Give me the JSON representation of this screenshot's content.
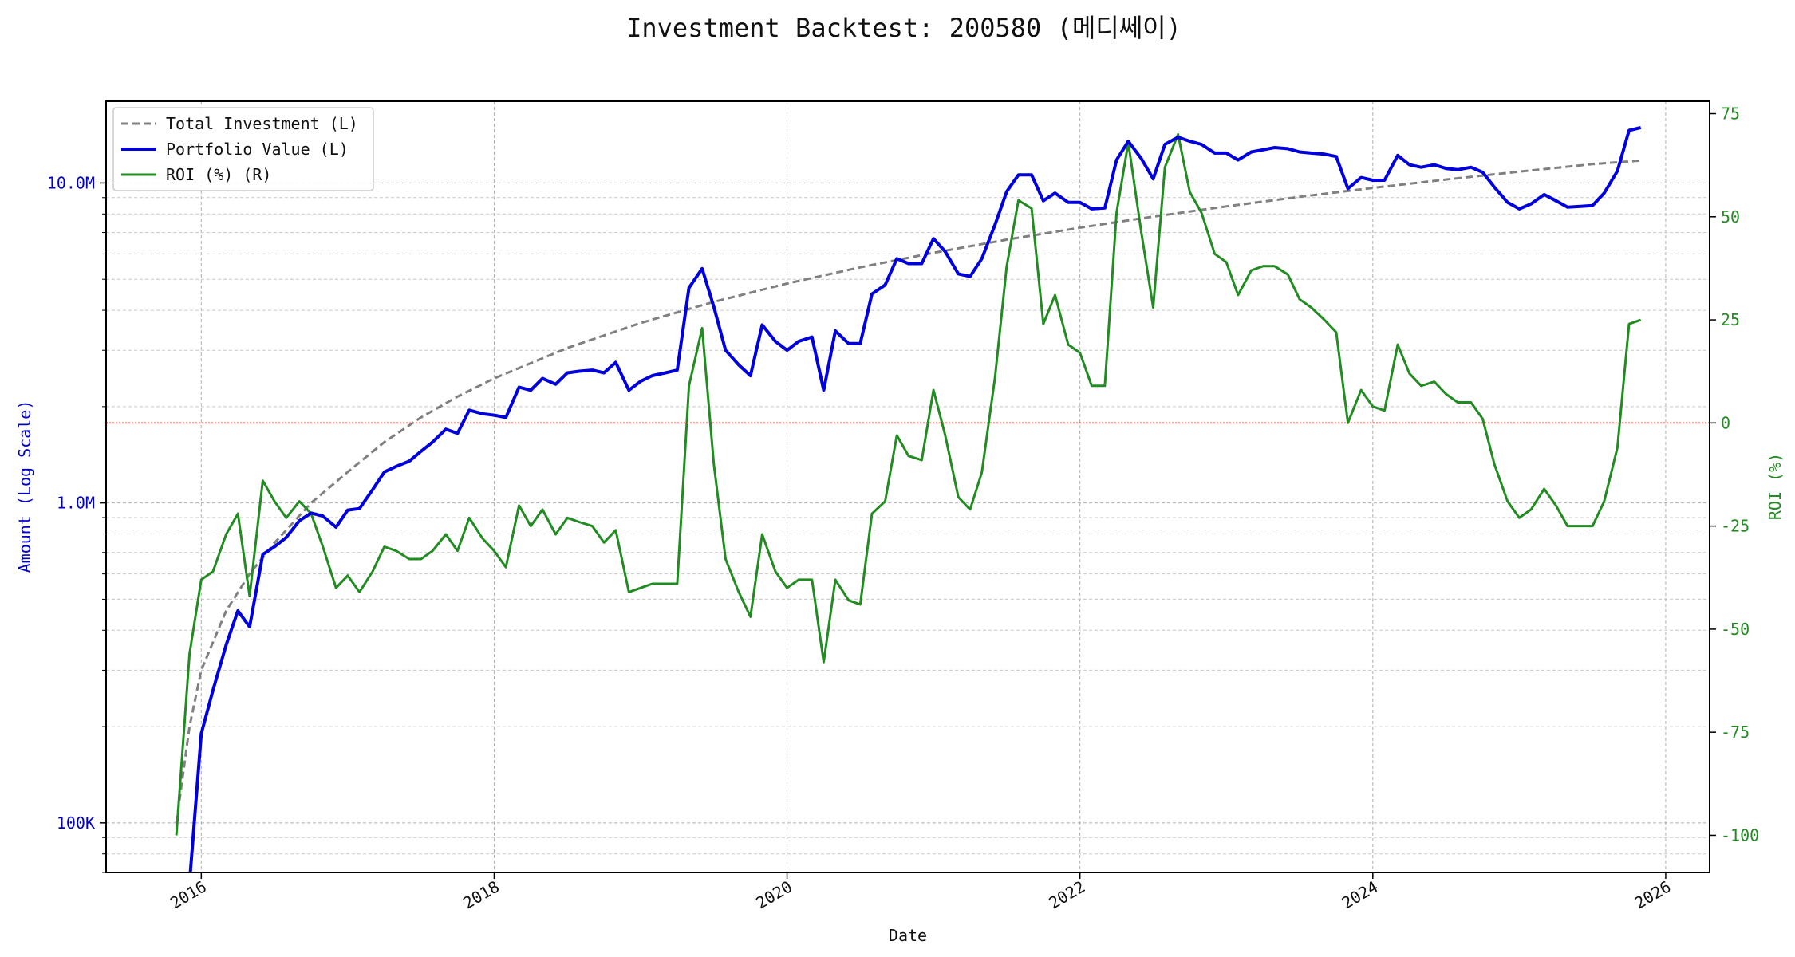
{
  "chart_data": {
    "type": "line",
    "title": "Investment Backtest: 200580 (메디쎄이)",
    "xlabel": "Date",
    "ylabel_left": "Amount (Log Scale)",
    "ylabel_right": "ROI (%)",
    "x_range": [
      2015.35,
      2026.3
    ],
    "y_left_scale": "log",
    "y_left_range": [
      70000,
      18000000
    ],
    "y_right_range": [
      -109,
      78
    ],
    "x_ticks": [
      {
        "v": 2016,
        "label": "2016"
      },
      {
        "v": 2018,
        "label": "2018"
      },
      {
        "v": 2020,
        "label": "2020"
      },
      {
        "v": 2022,
        "label": "2022"
      },
      {
        "v": 2024,
        "label": "2024"
      },
      {
        "v": 2026,
        "label": "2026"
      }
    ],
    "y_left_ticks": [
      {
        "v": 100000,
        "label": "100K"
      },
      {
        "v": 1000000,
        "label": "1.0M"
      },
      {
        "v": 10000000,
        "label": "10.0M"
      }
    ],
    "y_right_ticks": [
      -100,
      -75,
      -50,
      -25,
      0,
      25,
      50,
      75
    ],
    "grid": true,
    "legend_position": "top-left",
    "reference_line": {
      "axis": "right",
      "value": 0,
      "color": "#ff0000"
    },
    "series": [
      {
        "name": "Total Investment (L)",
        "axis": "left",
        "color": "#808080",
        "style": "dashed",
        "x": [
          2015.83,
          2015.92,
          2016.0,
          2016.17,
          2016.33,
          2016.5,
          2016.75,
          2017.0,
          2017.25,
          2017.5,
          2017.75,
          2018.0,
          2018.5,
          2019.0,
          2019.5,
          2020.0,
          2020.5,
          2021.0,
          2021.5,
          2022.0,
          2022.5,
          2023.0,
          2023.5,
          2024.0,
          2024.5,
          2025.0,
          2025.5,
          2025.83
        ],
        "values": [
          100000,
          200000,
          300000,
          460000,
          600000,
          750000,
          1000000,
          1250000,
          1550000,
          1850000,
          2150000,
          2450000,
          3050000,
          3650000,
          4250000,
          4850000,
          5450000,
          6050000,
          6650000,
          7250000,
          7850000,
          8450000,
          9050000,
          9650000,
          10250000,
          10850000,
          11450000,
          11750000
        ]
      },
      {
        "name": "Portfolio Value (L)",
        "axis": "left",
        "color": "#0000dd",
        "style": "solid",
        "x": [
          2015.92,
          2016.0,
          2016.08,
          2016.17,
          2016.25,
          2016.33,
          2016.42,
          2016.5,
          2016.58,
          2016.67,
          2016.75,
          2016.83,
          2016.92,
          2017.0,
          2017.08,
          2017.17,
          2017.25,
          2017.33,
          2017.42,
          2017.5,
          2017.58,
          2017.67,
          2017.75,
          2017.83,
          2017.92,
          2018.0,
          2018.08,
          2018.17,
          2018.25,
          2018.33,
          2018.42,
          2018.5,
          2018.58,
          2018.67,
          2018.75,
          2018.83,
          2018.92,
          2019.0,
          2019.08,
          2019.17,
          2019.25,
          2019.33,
          2019.42,
          2019.5,
          2019.58,
          2019.67,
          2019.75,
          2019.83,
          2019.92,
          2020.0,
          2020.08,
          2020.17,
          2020.25,
          2020.33,
          2020.42,
          2020.5,
          2020.58,
          2020.67,
          2020.75,
          2020.83,
          2020.92,
          2021.0,
          2021.08,
          2021.17,
          2021.25,
          2021.33,
          2021.42,
          2021.5,
          2021.58,
          2021.67,
          2021.75,
          2021.83,
          2021.92,
          2022.0,
          2022.08,
          2022.17,
          2022.25,
          2022.33,
          2022.42,
          2022.5,
          2022.58,
          2022.67,
          2022.75,
          2022.83,
          2022.92,
          2023.0,
          2023.08,
          2023.17,
          2023.25,
          2023.33,
          2023.42,
          2023.5,
          2023.58,
          2023.67,
          2023.75,
          2023.83,
          2023.92,
          2024.0,
          2024.08,
          2024.17,
          2024.25,
          2024.33,
          2024.42,
          2024.5,
          2024.58,
          2024.67,
          2024.75,
          2024.83,
          2024.92,
          2025.0,
          2025.08,
          2025.17,
          2025.25,
          2025.33,
          2025.42,
          2025.5,
          2025.58,
          2025.67,
          2025.75,
          2025.83
        ],
        "values": [
          65000,
          190000,
          260000,
          360000,
          460000,
          410000,
          690000,
          730000,
          780000,
          880000,
          930000,
          910000,
          840000,
          950000,
          960000,
          1100000,
          1250000,
          1300000,
          1350000,
          1450000,
          1550000,
          1700000,
          1650000,
          1950000,
          1900000,
          1880000,
          1850000,
          2300000,
          2250000,
          2450000,
          2350000,
          2550000,
          2580000,
          2600000,
          2550000,
          2750000,
          2250000,
          2400000,
          2500000,
          2550000,
          2600000,
          4700000,
          5400000,
          4100000,
          3000000,
          2700000,
          2500000,
          3600000,
          3200000,
          3000000,
          3200000,
          3300000,
          2250000,
          3450000,
          3150000,
          3150000,
          4500000,
          4800000,
          5800000,
          5600000,
          5600000,
          6700000,
          6100000,
          5200000,
          5100000,
          5800000,
          7400000,
          9400000,
          10600000,
          10600000,
          8800000,
          9300000,
          8700000,
          8700000,
          8300000,
          8350000,
          11800000,
          13500000,
          11900000,
          10300000,
          13200000,
          13900000,
          13500000,
          13200000,
          12400000,
          12400000,
          11800000,
          12500000,
          12700000,
          12900000,
          12800000,
          12500000,
          12400000,
          12300000,
          12100000,
          9600000,
          10400000,
          10200000,
          10200000,
          12200000,
          11400000,
          11200000,
          11400000,
          11100000,
          11000000,
          11200000,
          10800000,
          9700000,
          8700000,
          8300000,
          8600000,
          9200000,
          8800000,
          8400000,
          8450000,
          8500000,
          9300000,
          10900000,
          14600000,
          14900000
        ]
      },
      {
        "name": "ROI (%) (R)",
        "axis": "right",
        "color": "#228b22",
        "style": "solid",
        "x": [
          2015.83,
          2015.92,
          2016.0,
          2016.08,
          2016.17,
          2016.25,
          2016.33,
          2016.42,
          2016.5,
          2016.58,
          2016.67,
          2016.75,
          2016.83,
          2016.92,
          2017.0,
          2017.08,
          2017.17,
          2017.25,
          2017.33,
          2017.42,
          2017.5,
          2017.58,
          2017.67,
          2017.75,
          2017.83,
          2017.92,
          2018.0,
          2018.08,
          2018.17,
          2018.25,
          2018.33,
          2018.42,
          2018.5,
          2018.58,
          2018.67,
          2018.75,
          2018.83,
          2018.92,
          2019.0,
          2019.08,
          2019.17,
          2019.25,
          2019.33,
          2019.42,
          2019.5,
          2019.58,
          2019.67,
          2019.75,
          2019.83,
          2019.92,
          2020.0,
          2020.08,
          2020.17,
          2020.25,
          2020.33,
          2020.42,
          2020.5,
          2020.58,
          2020.67,
          2020.75,
          2020.83,
          2020.92,
          2021.0,
          2021.08,
          2021.17,
          2021.25,
          2021.33,
          2021.42,
          2021.5,
          2021.58,
          2021.67,
          2021.75,
          2021.83,
          2021.92,
          2022.0,
          2022.08,
          2022.17,
          2022.25,
          2022.33,
          2022.42,
          2022.5,
          2022.58,
          2022.67,
          2022.75,
          2022.83,
          2022.92,
          2023.0,
          2023.08,
          2023.17,
          2023.25,
          2023.33,
          2023.42,
          2023.5,
          2023.58,
          2023.67,
          2023.75,
          2023.83,
          2023.92,
          2024.0,
          2024.08,
          2024.17,
          2024.25,
          2024.33,
          2024.42,
          2024.5,
          2024.58,
          2024.67,
          2024.75,
          2024.83,
          2024.92,
          2025.0,
          2025.08,
          2025.17,
          2025.25,
          2025.33,
          2025.42,
          2025.5,
          2025.58,
          2025.67,
          2025.75,
          2025.83
        ],
        "values": [
          -100,
          -56,
          -38,
          -36,
          -27,
          -22,
          -42,
          -14,
          -19,
          -23,
          -19,
          -22,
          -30,
          -40,
          -37,
          -41,
          -36,
          -30,
          -31,
          -33,
          -33,
          -31,
          -27,
          -31,
          -23,
          -28,
          -31,
          -35,
          -20,
          -25,
          -21,
          -27,
          -23,
          -24,
          -25,
          -29,
          -26,
          -41,
          -40,
          -39,
          -39,
          -39,
          9,
          23,
          -10,
          -33,
          -41,
          -47,
          -27,
          -36,
          -40,
          -38,
          -38,
          -58,
          -38,
          -43,
          -44,
          -22,
          -19,
          -3,
          -8,
          -9,
          8,
          -3,
          -18,
          -21,
          -12,
          11,
          38,
          54,
          52,
          24,
          31,
          19,
          17,
          9,
          9,
          51,
          68,
          46,
          28,
          62,
          70,
          56,
          51,
          41,
          39,
          31,
          37,
          38,
          38,
          36,
          30,
          28,
          25,
          22,
          0,
          8,
          4,
          3,
          19,
          12,
          9,
          10,
          7,
          5,
          5,
          1,
          -10,
          -19,
          -23,
          -21,
          -16,
          -20,
          -25,
          -25,
          -25,
          -19,
          -6,
          24,
          25
        ]
      }
    ]
  }
}
